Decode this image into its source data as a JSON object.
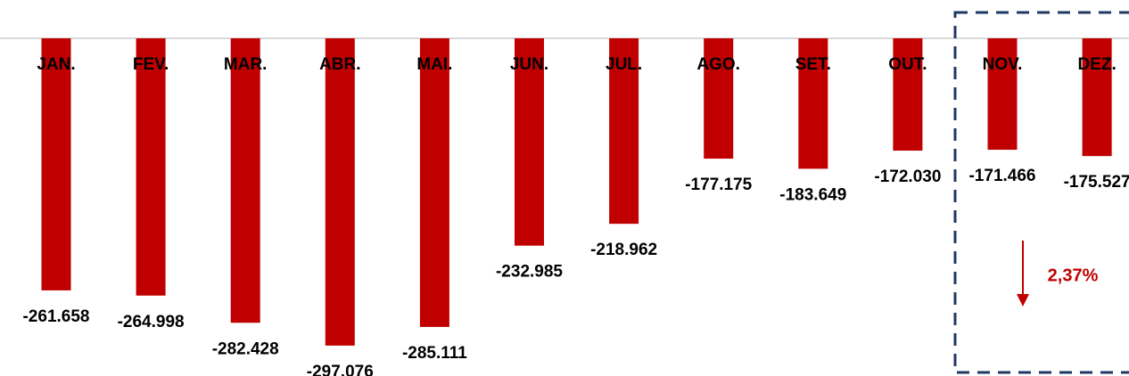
{
  "chart_data": {
    "type": "bar",
    "categories": [
      "JAN.",
      "FEV.",
      "MAR.",
      "ABR.",
      "MAI.",
      "JUN.",
      "JUL.",
      "AGO.",
      "SET.",
      "OUT.",
      "NOV.",
      "DEZ."
    ],
    "values": [
      -261658,
      -264998,
      -282428,
      -297076,
      -285111,
      -232985,
      -218962,
      -177175,
      -183649,
      -172030,
      -171466,
      -175527
    ],
    "value_labels": [
      "-261.658",
      "-264.998",
      "-282.428",
      "-297.076",
      "-285.111",
      "-232.985",
      "-218.962",
      "-177.175",
      "-183.649",
      "-172.030",
      "-171.466",
      "-175.527"
    ],
    "color": "#c00000",
    "ylim": [
      -300000,
      -100000
    ],
    "annotation": "2,37%"
  }
}
